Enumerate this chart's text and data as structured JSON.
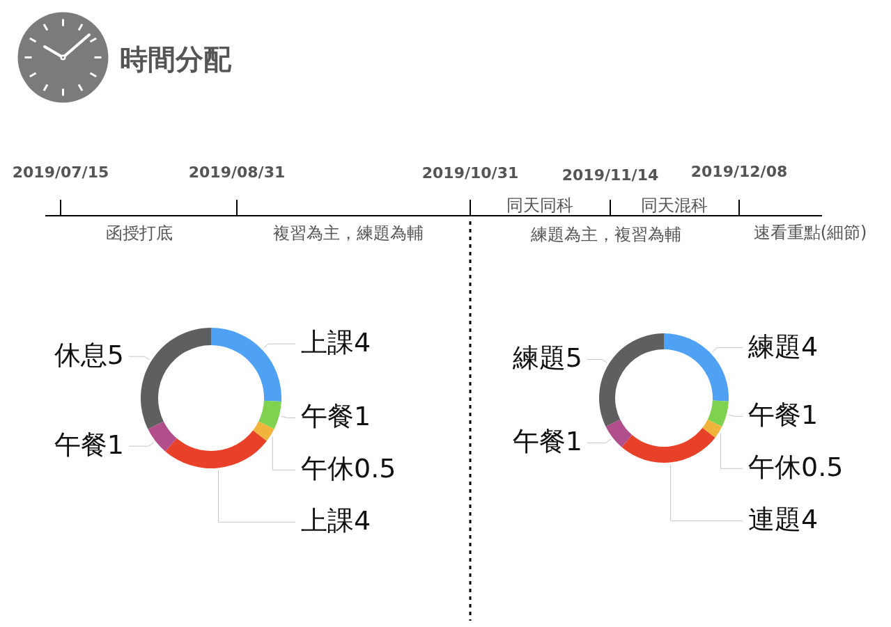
{
  "chart_data": [
    {
      "type": "other",
      "title": "時間分配",
      "categories": [
        "2019/07/15",
        "2019/08/31",
        "2019/10/31",
        "2019/11/14",
        "2019/12/08"
      ],
      "annotations": [
        "函授打底",
        "複習為主，練題為輔",
        "同天同科",
        "同天混科",
        "練題為主，複習為輔",
        "速看重點(細節)"
      ]
    },
    {
      "type": "donut",
      "categories": [
        "上課",
        "午餐",
        "午休",
        "上課",
        "午餐",
        "休息"
      ],
      "values": [
        4,
        1,
        0.5,
        4,
        1,
        5
      ],
      "colors": [
        "#4ea1f3",
        "#7ed24f",
        "#f0b43c",
        "#e8412a",
        "#b04f8c",
        "#5f5f5f"
      ],
      "data_labels": true
    },
    {
      "type": "donut",
      "categories": [
        "練題",
        "午餐",
        "午休",
        "連題",
        "午餐",
        "練題"
      ],
      "values": [
        4,
        1,
        0.5,
        4,
        1,
        5
      ],
      "colors": [
        "#4ea1f3",
        "#7ed24f",
        "#f0b43c",
        "#e8412a",
        "#b04f8c",
        "#5f5f5f"
      ],
      "data_labels": true
    }
  ]
}
